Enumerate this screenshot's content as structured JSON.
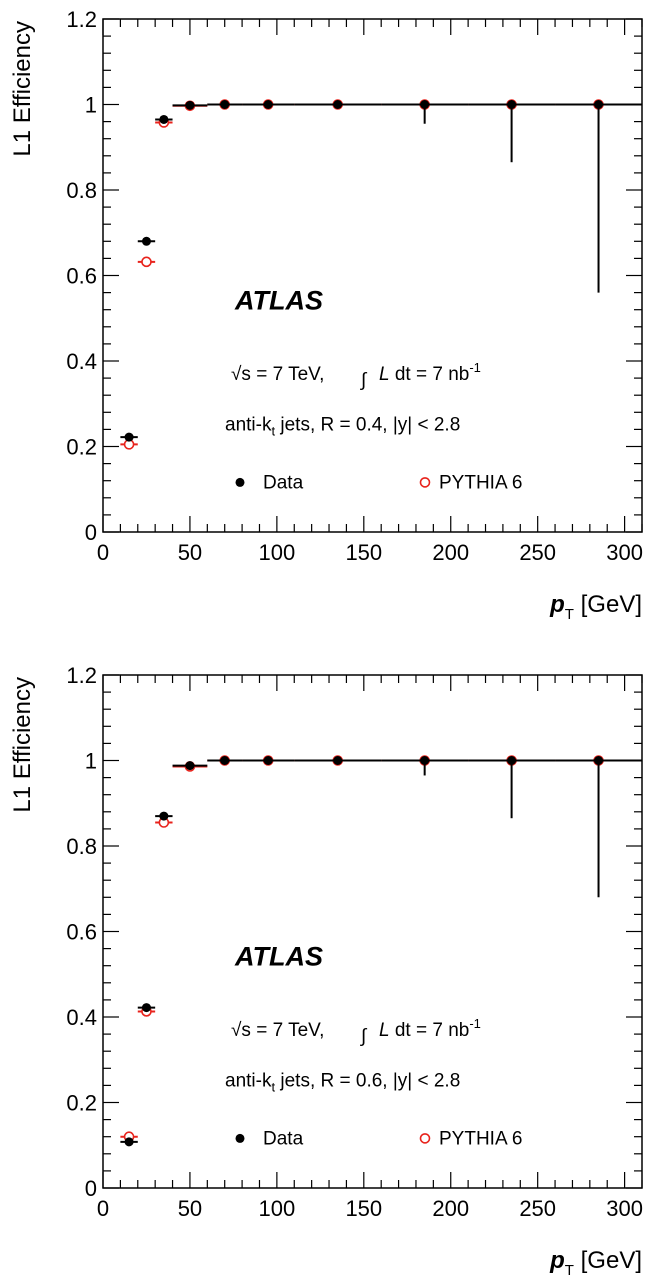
{
  "chart_data": [
    {
      "type": "scatter",
      "xlabel_main": "p",
      "xlabel_sub": "T",
      "xlabel_unit": "[GeV]",
      "ylabel": "L1 Efficiency",
      "xlim": [
        0,
        310
      ],
      "ylim": [
        0,
        1.2
      ],
      "xticks": [
        "0",
        "50",
        "100",
        "150",
        "200",
        "250",
        "300"
      ],
      "yticks": [
        "0",
        "0.2",
        "0.4",
        "0.6",
        "0.8",
        "1",
        "1.2"
      ],
      "atlas_label": "ATLAS",
      "energy_label": "√s = 7 TeV,",
      "lumi_label": "L dt = 7 nb",
      "lumi_sup": "-1",
      "jets_label": "anti-k",
      "jets_sub": "t",
      "jets_rest": " jets,  R = 0.4,  |y| < 2.8",
      "legend": [
        "Data",
        "PYTHIA 6"
      ],
      "series": [
        {
          "name": "Data",
          "points": [
            {
              "x": 15,
              "xerr": 5,
              "y": 0.222,
              "ylo": 0.0,
              "yhi": 0.0
            },
            {
              "x": 25,
              "xerr": 5,
              "y": 0.68,
              "ylo": 0.0,
              "yhi": 0.0
            },
            {
              "x": 35,
              "xerr": 5,
              "y": 0.965,
              "ylo": 0.0,
              "yhi": 0.0
            },
            {
              "x": 50,
              "xerr": 10,
              "y": 0.998,
              "ylo": 0.0,
              "yhi": 0.0
            },
            {
              "x": 70,
              "xerr": 10,
              "y": 1.0,
              "ylo": 0.0,
              "yhi": 0.0
            },
            {
              "x": 95,
              "xerr": 15,
              "y": 1.0,
              "ylo": 0.0,
              "yhi": 0.0
            },
            {
              "x": 135,
              "xerr": 25,
              "y": 1.0,
              "ylo": 0.0,
              "yhi": 0.0
            },
            {
              "x": 185,
              "xerr": 25,
              "y": 1.0,
              "ylo": 0.045,
              "yhi": 0.0
            },
            {
              "x": 235,
              "xerr": 25,
              "y": 1.0,
              "ylo": 0.135,
              "yhi": 0.0
            },
            {
              "x": 285,
              "xerr": 25,
              "y": 1.0,
              "ylo": 0.44,
              "yhi": 0.0
            }
          ]
        },
        {
          "name": "PYTHIA 6",
          "points": [
            {
              "x": 15,
              "xerr": 5,
              "y": 0.205
            },
            {
              "x": 25,
              "xerr": 5,
              "y": 0.632
            },
            {
              "x": 35,
              "xerr": 5,
              "y": 0.958
            },
            {
              "x": 50,
              "xerr": 10,
              "y": 0.997
            },
            {
              "x": 70,
              "xerr": 10,
              "y": 1.0
            },
            {
              "x": 95,
              "xerr": 15,
              "y": 1.0
            },
            {
              "x": 135,
              "xerr": 25,
              "y": 1.0
            },
            {
              "x": 185,
              "xerr": 25,
              "y": 1.0
            },
            {
              "x": 235,
              "xerr": 25,
              "y": 1.0
            },
            {
              "x": 285,
              "xerr": 25,
              "y": 1.0
            }
          ]
        }
      ]
    },
    {
      "type": "scatter",
      "xlabel_main": "p",
      "xlabel_sub": "T",
      "xlabel_unit": "[GeV]",
      "ylabel": "L1 Efficiency",
      "xlim": [
        0,
        310
      ],
      "ylim": [
        0,
        1.2
      ],
      "xticks": [
        "0",
        "50",
        "100",
        "150",
        "200",
        "250",
        "300"
      ],
      "yticks": [
        "0",
        "0.2",
        "0.4",
        "0.6",
        "0.8",
        "1",
        "1.2"
      ],
      "atlas_label": "ATLAS",
      "energy_label": "√s = 7 TeV,",
      "lumi_label": "L dt = 7 nb",
      "lumi_sup": "-1",
      "jets_label": "anti-k",
      "jets_sub": "t",
      "jets_rest": " jets,  R = 0.6,  |y| < 2.8",
      "legend": [
        "Data",
        "PYTHIA 6"
      ],
      "series": [
        {
          "name": "Data",
          "points": [
            {
              "x": 15,
              "xerr": 5,
              "y": 0.108,
              "ylo": 0.0,
              "yhi": 0.0
            },
            {
              "x": 25,
              "xerr": 5,
              "y": 0.422,
              "ylo": 0.0,
              "yhi": 0.0
            },
            {
              "x": 35,
              "xerr": 5,
              "y": 0.87,
              "ylo": 0.0,
              "yhi": 0.0
            },
            {
              "x": 50,
              "xerr": 10,
              "y": 0.988,
              "ylo": 0.0,
              "yhi": 0.0
            },
            {
              "x": 70,
              "xerr": 10,
              "y": 1.0,
              "ylo": 0.0,
              "yhi": 0.0
            },
            {
              "x": 95,
              "xerr": 15,
              "y": 1.0,
              "ylo": 0.0,
              "yhi": 0.0
            },
            {
              "x": 135,
              "xerr": 25,
              "y": 1.0,
              "ylo": 0.0,
              "yhi": 0.0
            },
            {
              "x": 185,
              "xerr": 25,
              "y": 1.0,
              "ylo": 0.035,
              "yhi": 0.0
            },
            {
              "x": 235,
              "xerr": 25,
              "y": 1.0,
              "ylo": 0.135,
              "yhi": 0.0
            },
            {
              "x": 285,
              "xerr": 25,
              "y": 1.0,
              "ylo": 0.32,
              "yhi": 0.0
            }
          ]
        },
        {
          "name": "PYTHIA 6",
          "points": [
            {
              "x": 15,
              "xerr": 5,
              "y": 0.12
            },
            {
              "x": 25,
              "xerr": 5,
              "y": 0.413
            },
            {
              "x": 35,
              "xerr": 5,
              "y": 0.855
            },
            {
              "x": 50,
              "xerr": 10,
              "y": 0.986
            },
            {
              "x": 70,
              "xerr": 10,
              "y": 1.0
            },
            {
              "x": 95,
              "xerr": 15,
              "y": 1.0
            },
            {
              "x": 135,
              "xerr": 25,
              "y": 1.0
            },
            {
              "x": 185,
              "xerr": 25,
              "y": 1.0
            },
            {
              "x": 235,
              "xerr": 25,
              "y": 1.0
            },
            {
              "x": 285,
              "xerr": 25,
              "y": 1.0
            }
          ]
        }
      ]
    }
  ],
  "colors": {
    "data": "#000000",
    "pythia": "#e8231c",
    "axis": "#000000"
  }
}
